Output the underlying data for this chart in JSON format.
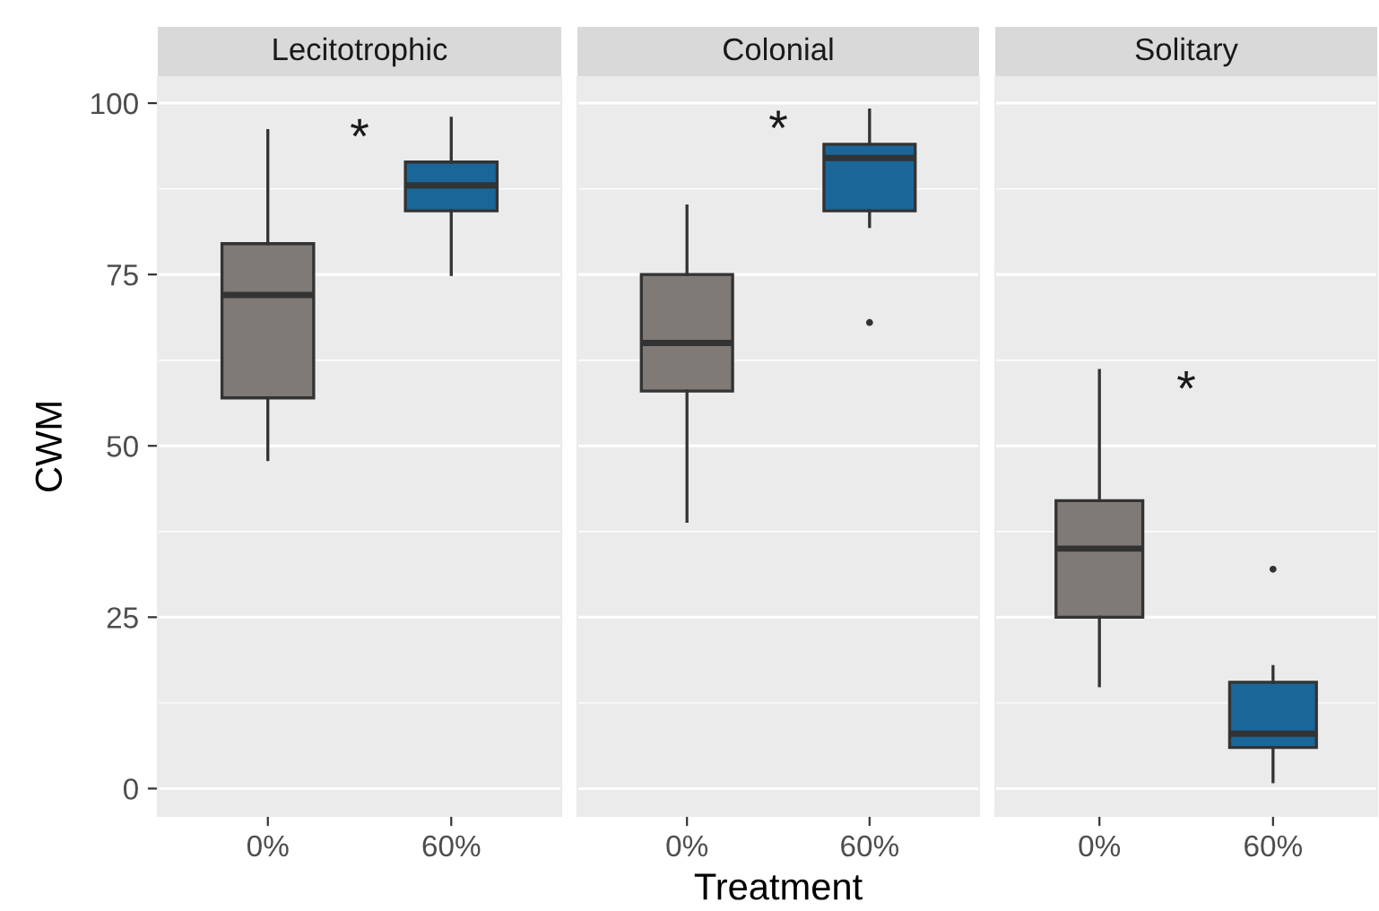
{
  "chart_data": [
    {
      "type": "box",
      "title": "Lecitotrophic",
      "ylabel": "CWM",
      "categories": [
        "0%",
        "60%"
      ],
      "colors": [
        "#7f7a76",
        "#1b6699"
      ],
      "boxes": [
        {
          "low": 48,
          "q1": 57,
          "median": 72,
          "q3": 79.5,
          "high": 96
        },
        {
          "low": 75,
          "q1": 84.3,
          "median": 88,
          "q3": 91.4,
          "high": 97.8
        }
      ],
      "ylim": [
        -4,
        103.8
      ],
      "yticks": [
        0,
        25,
        50,
        75,
        100
      ],
      "grid": "y",
      "annotations": [
        "*"
      ]
    },
    {
      "type": "box",
      "title": "Colonial",
      "xlabel": "Treatment",
      "categories": [
        "0%",
        "60%"
      ],
      "colors": [
        "#7f7a76",
        "#1b6699"
      ],
      "boxes": [
        {
          "low": 39,
          "q1": 58,
          "median": 65,
          "q3": 75,
          "high": 85
        },
        {
          "low": 82,
          "q1": 84.3,
          "median": 92,
          "q3": 94,
          "high": 99,
          "outliers": [
            68
          ]
        }
      ],
      "ylim": [
        -4,
        103.8
      ],
      "yticks": [
        0,
        25,
        50,
        75,
        100
      ],
      "grid": "y",
      "tick_labels": "x",
      "annotations": [
        "*"
      ]
    },
    {
      "type": "box",
      "title": "Solitary",
      "categories": [
        "0%",
        "60%"
      ],
      "colors": [
        "#7f7a76",
        "#1b6699"
      ],
      "boxes": [
        {
          "low": 15,
          "q1": 25,
          "median": 35,
          "q3": 42,
          "high": 61
        },
        {
          "low": 1,
          "q1": 6,
          "median": 8,
          "q3": 15.5,
          "high": 17.8,
          "outliers": [
            32
          ]
        }
      ],
      "ylim": [
        -4,
        103.8
      ],
      "yticks": [
        0,
        25,
        50,
        75,
        100
      ],
      "grid": "y",
      "tick_labels": "x",
      "annotations": [
        "*"
      ]
    }
  ]
}
